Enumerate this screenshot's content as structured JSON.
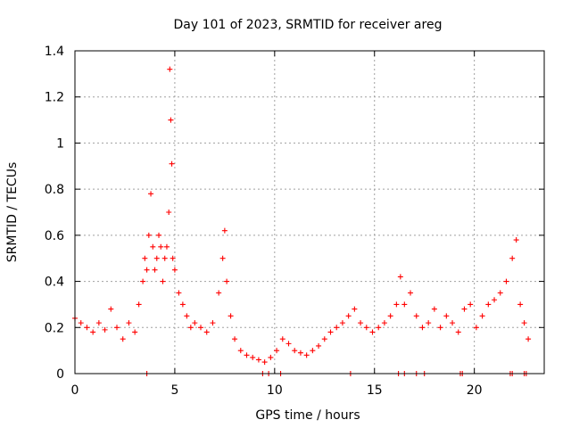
{
  "chart_data": {
    "type": "scatter",
    "title": "Day 101 of 2023, SRMTID for receiver areg",
    "xlabel": "GPS time / hours",
    "ylabel": "SRMTID / TECUs",
    "xlim": [
      0,
      23.5
    ],
    "ylim": [
      0,
      1.4
    ],
    "x_ticks": [
      0,
      5,
      10,
      15,
      20
    ],
    "x_tick_labels": [
      "0",
      "5",
      "10",
      "15",
      "20"
    ],
    "y_ticks": [
      0,
      0.2,
      0.4,
      0.6,
      0.8,
      1,
      1.2,
      1.4
    ],
    "y_tick_labels": [
      "0",
      "0.2",
      "0.4",
      "0.6",
      "0.8",
      "1",
      "1.2",
      "1.4"
    ],
    "grid": true,
    "marker": "+",
    "marker_color": "#ff0000",
    "series": [
      {
        "name": "SRMTID",
        "x": [
          0.0,
          0.3,
          0.6,
          0.9,
          1.2,
          1.5,
          1.8,
          2.1,
          2.4,
          2.7,
          3.0,
          3.2,
          3.4,
          3.5,
          3.6,
          3.7,
          3.8,
          3.9,
          4.0,
          4.1,
          4.2,
          4.3,
          4.4,
          4.5,
          4.6,
          4.7,
          4.75,
          4.8,
          4.85,
          4.9,
          5.0,
          5.2,
          5.4,
          5.6,
          5.8,
          6.0,
          6.3,
          6.6,
          6.9,
          7.2,
          7.4,
          7.5,
          7.6,
          7.8,
          8.0,
          8.3,
          8.6,
          8.9,
          9.2,
          9.5,
          9.8,
          10.1,
          10.4,
          10.7,
          11.0,
          11.3,
          11.6,
          11.9,
          12.2,
          12.5,
          12.8,
          13.1,
          13.4,
          13.7,
          14.0,
          14.3,
          14.6,
          14.9,
          15.2,
          15.5,
          15.8,
          16.1,
          16.3,
          16.5,
          16.8,
          17.1,
          17.4,
          17.7,
          18.0,
          18.3,
          18.6,
          18.9,
          19.2,
          19.5,
          19.8,
          20.1,
          20.4,
          20.7,
          21.0,
          21.3,
          21.6,
          21.9,
          22.1,
          22.3,
          22.5,
          22.7
        ],
        "y": [
          0.24,
          0.22,
          0.2,
          0.18,
          0.22,
          0.19,
          0.28,
          0.2,
          0.15,
          0.22,
          0.18,
          0.3,
          0.4,
          0.5,
          0.45,
          0.6,
          0.78,
          0.55,
          0.45,
          0.5,
          0.6,
          0.55,
          0.4,
          0.5,
          0.55,
          0.7,
          1.32,
          1.1,
          0.91,
          0.5,
          0.45,
          0.35,
          0.3,
          0.25,
          0.2,
          0.22,
          0.2,
          0.18,
          0.22,
          0.35,
          0.5,
          0.62,
          0.4,
          0.25,
          0.15,
          0.1,
          0.08,
          0.07,
          0.06,
          0.05,
          0.07,
          0.1,
          0.15,
          0.13,
          0.1,
          0.09,
          0.08,
          0.1,
          0.12,
          0.15,
          0.18,
          0.2,
          0.22,
          0.25,
          0.28,
          0.22,
          0.2,
          0.18,
          0.2,
          0.22,
          0.25,
          0.3,
          0.42,
          0.3,
          0.35,
          0.25,
          0.2,
          0.22,
          0.28,
          0.2,
          0.25,
          0.22,
          0.18,
          0.28,
          0.3,
          0.2,
          0.25,
          0.3,
          0.32,
          0.35,
          0.4,
          0.5,
          0.58,
          0.3,
          0.22,
          0.15
        ]
      }
    ],
    "zero_markers_x": [
      3.6,
      9.4,
      9.7,
      10.3,
      13.8,
      16.2,
      16.5,
      17.1,
      17.5,
      19.3,
      19.4,
      21.8,
      21.9,
      22.5,
      22.6
    ]
  }
}
